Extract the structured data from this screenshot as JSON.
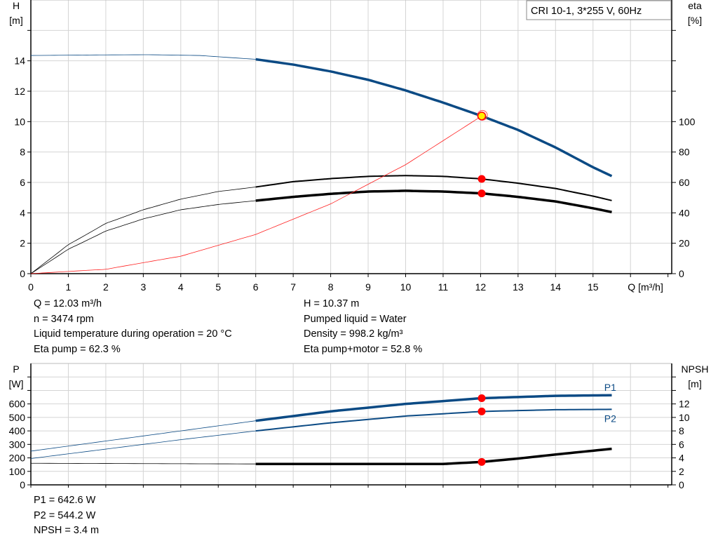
{
  "chart_data": [
    {
      "type": "line",
      "title": "CRI 10-1, 3*255 V, 60Hz",
      "xlabel": "Q [m³/h]",
      "ylabel": "H\n[m]",
      "ylabel_left": [
        "H",
        "[m]"
      ],
      "ylabel_right": [
        "eta",
        "[%]"
      ],
      "xlim": [
        0,
        17.1
      ],
      "ylim": [
        0,
        18
      ],
      "ylim_right": [
        0,
        180
      ],
      "xticks": [
        0,
        1,
        2,
        3,
        4,
        5,
        6,
        7,
        8,
        9,
        10,
        11,
        12,
        13,
        14,
        15
      ],
      "yticks": [
        0,
        2,
        4,
        6,
        8,
        10,
        12,
        14
      ],
      "yticks_right": [
        0,
        20,
        40,
        60,
        80,
        100
      ],
      "grid": true,
      "series": [
        {
          "id": "H",
          "axis": "left",
          "color": "#0b4a84",
          "x": [
            0,
            1,
            2,
            3.2,
            4.5,
            6,
            7,
            8,
            9,
            10,
            11,
            12.03,
            13,
            14,
            15,
            15.6
          ],
          "y": [
            14.35,
            14.37,
            14.39,
            14.4,
            14.35,
            14.1,
            13.75,
            13.3,
            12.75,
            12.05,
            11.25,
            10.37,
            9.45,
            8.3,
            7.0,
            6.3
          ]
        },
        {
          "id": "eta_pump",
          "axis": "right",
          "color": "#000000",
          "x": [
            0,
            1,
            2,
            3,
            4,
            5,
            6,
            7,
            8,
            9,
            10,
            11,
            12.03,
            13,
            14,
            15,
            15.6
          ],
          "y": [
            0,
            19,
            33,
            42,
            49,
            54,
            57,
            60.5,
            62.5,
            64,
            64.5,
            64,
            62.3,
            59.5,
            56,
            51,
            47.5
          ]
        },
        {
          "id": "eta_pump_motor",
          "axis": "right",
          "color": "#000000",
          "x": [
            0,
            1,
            2,
            3,
            4,
            5,
            6,
            7,
            8,
            9,
            10,
            11,
            12.03,
            13,
            14,
            15,
            15.6
          ],
          "y": [
            0,
            16,
            28,
            36,
            42,
            45.5,
            48,
            50.5,
            52.5,
            54,
            54.5,
            54,
            52.8,
            50.5,
            47.5,
            43,
            40
          ]
        },
        {
          "id": "system",
          "axis": "left",
          "color": "#ff2020",
          "x": [
            0,
            2,
            4,
            6,
            8,
            10,
            12.03
          ],
          "y": [
            0,
            0.29,
            1.15,
            2.58,
            4.59,
            7.17,
            10.37
          ]
        }
      ],
      "duty_point": {
        "Q": 12.03,
        "H": 10.37,
        "eta_pump": 62.3,
        "eta_pump_motor": 52.8
      }
    },
    {
      "type": "line",
      "ylabel_left": [
        "P",
        "[W]"
      ],
      "ylabel_right": [
        "NPSH",
        "[m]"
      ],
      "xlim": [
        0,
        17.1
      ],
      "ylim": [
        0,
        900
      ],
      "ylim_right": [
        0,
        18
      ],
      "yticks": [
        0,
        100,
        200,
        300,
        400,
        500,
        600
      ],
      "yticks_right": [
        0,
        2,
        4,
        6,
        8,
        10,
        12
      ],
      "grid": true,
      "series": [
        {
          "id": "P1",
          "name": "P1",
          "axis": "left",
          "color": "#0b4a84",
          "x": [
            0,
            2,
            4,
            6,
            8,
            10,
            12.03,
            14,
            15.6
          ],
          "y": [
            250,
            325,
            400,
            475,
            545,
            600,
            642.6,
            660,
            665
          ]
        },
        {
          "id": "P2",
          "name": "P2",
          "axis": "left",
          "color": "#0b4a84",
          "x": [
            0,
            2,
            4,
            6,
            8,
            10,
            12.03,
            14,
            15.6
          ],
          "y": [
            195,
            265,
            335,
            400,
            460,
            510,
            544.2,
            557,
            560
          ]
        },
        {
          "id": "NPSH",
          "axis": "right",
          "color": "#000000",
          "x": [
            0,
            3,
            6,
            9,
            11,
            12.03,
            13,
            14,
            15.6
          ],
          "y": [
            3.2,
            3.15,
            3.1,
            3.1,
            3.1,
            3.4,
            3.9,
            4.5,
            5.4
          ]
        }
      ],
      "duty_point": {
        "Q": 12.03,
        "P1": 642.6,
        "P2": 544.2,
        "NPSH": 3.4
      }
    }
  ],
  "info_top": {
    "q": "Q = 12.03 m³/h",
    "n": "n = 3474 rpm",
    "temp": "Liquid temperature during operation = 20 °C",
    "eta_pump": "Eta pump = 62.3 %",
    "h": "H = 10.37 m",
    "liquid": "Pumped liquid = Water",
    "density": "Density = 998.2 kg/m³",
    "eta_pm": "Eta pump+motor = 52.8 %"
  },
  "info_bottom": {
    "p1": "P1 = 642.6 W",
    "p2": "P2 = 544.2 W",
    "npsh": "NPSH = 3.4 m"
  }
}
